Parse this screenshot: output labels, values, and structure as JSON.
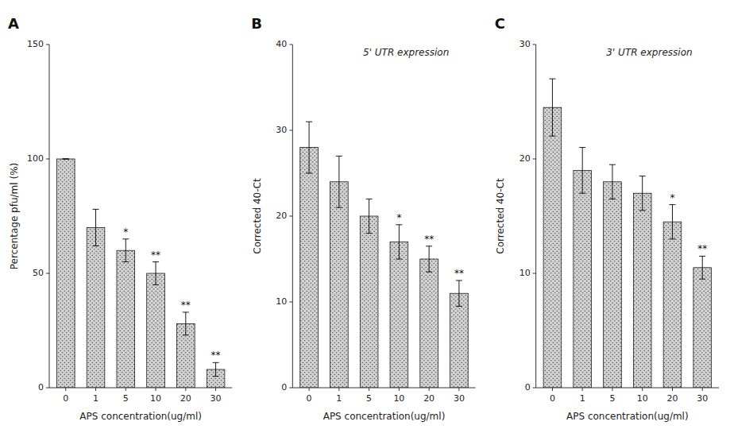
{
  "chart_data": [
    {
      "type": "bar",
      "title": "A",
      "categories": [
        "0",
        "1",
        "5",
        "10",
        "20",
        "30"
      ],
      "values": [
        100,
        70,
        60,
        50,
        28,
        8
      ],
      "errors": [
        0,
        8,
        5,
        5,
        5,
        3
      ],
      "xlabel": "APS concentration(ug/ml)",
      "ylabel": "Percentage pfu/ml (%)",
      "ylim": [
        0,
        150
      ],
      "yticks": [
        0,
        50,
        100,
        150
      ],
      "color": "#d0d0d0",
      "grid": false,
      "annotations": [
        {
          "text": "*",
          "x": "5"
        },
        {
          "text": "**",
          "x": "10"
        },
        {
          "text": "**",
          "x": "20"
        },
        {
          "text": "**",
          "x": "30"
        }
      ]
    },
    {
      "type": "bar",
      "title": "B",
      "subtitle": "5' UTR expression",
      "categories": [
        "0",
        "1",
        "5",
        "10",
        "20",
        "30"
      ],
      "values": [
        28,
        24,
        20,
        17,
        15,
        11
      ],
      "errors": [
        3,
        3,
        2,
        2,
        1.5,
        1.5
      ],
      "xlabel": "APS concentration(ug/ml)",
      "ylabel": "Corrected 40-Ct",
      "ylim": [
        0,
        40
      ],
      "yticks": [
        0,
        10,
        20,
        30,
        40
      ],
      "color": "#d0d0d0",
      "grid": false,
      "annotations": [
        {
          "text": "*",
          "x": "10"
        },
        {
          "text": "**",
          "x": "20"
        },
        {
          "text": "**",
          "x": "30"
        }
      ]
    },
    {
      "type": "bar",
      "title": "C",
      "subtitle": "3' UTR expression",
      "categories": [
        "0",
        "1",
        "5",
        "10",
        "20",
        "30"
      ],
      "values": [
        24.5,
        19,
        18,
        17,
        14.5,
        10.5
      ],
      "errors": [
        2.5,
        2,
        1.5,
        1.5,
        1.5,
        1
      ],
      "xlabel": "APS concentration(ug/ml)",
      "ylabel": "Corrected 40-Ct",
      "ylim": [
        0,
        30
      ],
      "yticks": [
        0,
        10,
        20,
        30
      ],
      "color": "#d0d0d0",
      "grid": false,
      "annotations": [
        {
          "text": "*",
          "x": "20"
        },
        {
          "text": "**",
          "x": "30"
        }
      ]
    }
  ]
}
